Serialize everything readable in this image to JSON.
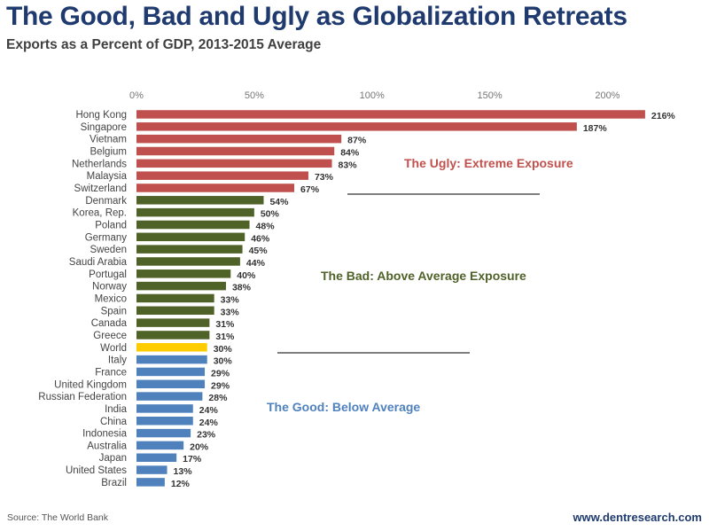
{
  "header": {
    "title": "The Good, Bad and Ugly as Globalization Retreats",
    "subtitle": "Exports as a Percent of GDP, 2013-2015 Average"
  },
  "footer": {
    "source": "Source: The World Bank",
    "website": "www.dentresearch.com"
  },
  "chart_data": {
    "type": "bar",
    "orientation": "horizontal",
    "title": "The Good, Bad and Ugly as Globalization Retreats",
    "subtitle": "Exports as a Percent of GDP, 2013-2015 Average",
    "xlabel": "",
    "ylabel": "",
    "xlim": [
      0,
      220
    ],
    "x_ticks": [
      0,
      50,
      100,
      150,
      200
    ],
    "x_tick_labels": [
      "0%",
      "50%",
      "100%",
      "150%",
      "200%"
    ],
    "x_axis_position": "top",
    "grid": false,
    "legend": "none",
    "categories": [
      "Hong Kong",
      "Singapore",
      "Vietnam",
      "Belgium",
      "Netherlands",
      "Malaysia",
      "Switzerland",
      "Denmark",
      "Korea, Rep.",
      "Poland",
      "Germany",
      "Sweden",
      "Saudi Arabia",
      "Portugal",
      "Norway",
      "Mexico",
      "Spain",
      "Canada",
      "Greece",
      "World",
      "Italy",
      "France",
      "United Kingdom",
      "Russian Federation",
      "India",
      "China",
      "Indonesia",
      "Australia",
      "Japan",
      "United States",
      "Brazil"
    ],
    "values": [
      216,
      187,
      87,
      84,
      83,
      73,
      67,
      54,
      50,
      48,
      46,
      45,
      44,
      40,
      38,
      33,
      33,
      31,
      31,
      30,
      30,
      29,
      29,
      28,
      24,
      24,
      23,
      20,
      17,
      13,
      12
    ],
    "value_labels": [
      "216%",
      "187%",
      "87%",
      "84%",
      "83%",
      "73%",
      "67%",
      "54%",
      "50%",
      "48%",
      "46%",
      "45%",
      "44%",
      "40%",
      "38%",
      "33%",
      "33%",
      "31%",
      "31%",
      "30%",
      "30%",
      "29%",
      "29%",
      "28%",
      "24%",
      "24%",
      "23%",
      "20%",
      "17%",
      "13%",
      "12%"
    ],
    "groups": [
      "ugly",
      "ugly",
      "ugly",
      "ugly",
      "ugly",
      "ugly",
      "ugly",
      "bad",
      "bad",
      "bad",
      "bad",
      "bad",
      "bad",
      "bad",
      "bad",
      "bad",
      "bad",
      "bad",
      "bad",
      "world",
      "good",
      "good",
      "good",
      "good",
      "good",
      "good",
      "good",
      "good",
      "good",
      "good",
      "good"
    ],
    "group_colors": {
      "ugly": "#c0504d",
      "bad": "#4f6228",
      "world": "#ffcc00",
      "good": "#4f81bd"
    },
    "annotations": [
      {
        "text": "The Ugly: Extreme Exposure",
        "group": "ugly",
        "color": "#c0504d"
      },
      {
        "text": "The Bad: Above Average Exposure",
        "group": "bad",
        "color": "#4f6228"
      },
      {
        "text": "The Good: Below Average",
        "group": "good",
        "color": "#4f81bd"
      }
    ]
  }
}
